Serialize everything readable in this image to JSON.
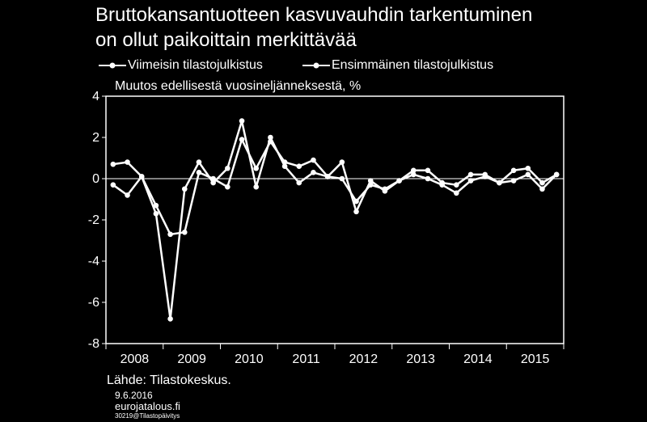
{
  "title_line1": "Bruttokansantuotteen kasvuvauhdin tarkentuminen",
  "title_line2": "on ollut paikoittain merkittävää",
  "source": "Lähde: Tilastokeskus.",
  "footer": {
    "date": "9.6.2016",
    "site": "eurojatalous.fi",
    "code": "30219@Tilastopäivitys"
  },
  "colors": {
    "background": "#000000",
    "line": "#ffffff"
  },
  "chart_data": {
    "type": "line",
    "ylabel": "Muutos edellisestä vuosineljänneksestä, %",
    "ylim": [
      -8,
      4
    ],
    "yticks": [
      4,
      2,
      0,
      -2,
      -4,
      -6,
      -8
    ],
    "year_labels": [
      "2008",
      "2009",
      "2010",
      "2011",
      "2012",
      "2013",
      "2014",
      "2015"
    ],
    "x": [
      "2008Q1",
      "2008Q2",
      "2008Q3",
      "2008Q4",
      "2009Q1",
      "2009Q2",
      "2009Q3",
      "2009Q4",
      "2010Q1",
      "2010Q2",
      "2010Q3",
      "2010Q4",
      "2011Q1",
      "2011Q2",
      "2011Q3",
      "2011Q4",
      "2012Q1",
      "2012Q2",
      "2012Q3",
      "2012Q4",
      "2013Q1",
      "2013Q2",
      "2013Q3",
      "2013Q4",
      "2014Q1",
      "2014Q2",
      "2014Q3",
      "2014Q4",
      "2015Q1",
      "2015Q2",
      "2015Q3",
      "2015Q4"
    ],
    "grid": false,
    "legend_position": "top",
    "series": [
      {
        "name": "Viimeisin tilastojulkistus",
        "values": [
          -0.3,
          -0.8,
          0.1,
          -1.7,
          -6.8,
          -0.5,
          0.8,
          -0.2,
          0.5,
          2.8,
          -0.4,
          2.0,
          0.6,
          -0.2,
          0.3,
          0.1,
          0.8,
          -1.6,
          -0.1,
          -0.6,
          -0.1,
          0.2,
          0.0,
          -0.3,
          -0.7,
          -0.1,
          0.1,
          -0.2,
          -0.1,
          0.2,
          -0.5,
          0.2
        ]
      },
      {
        "name": "Ensimmäinen tilastojulkistus",
        "values": [
          0.7,
          0.8,
          0.1,
          -1.3,
          -2.7,
          -2.6,
          0.3,
          0.0,
          -0.4,
          1.9,
          0.5,
          1.8,
          0.8,
          0.6,
          0.9,
          0.1,
          0.0,
          -1.1,
          -0.3,
          -0.5,
          -0.1,
          0.4,
          0.4,
          -0.2,
          -0.3,
          0.2,
          0.2,
          -0.2,
          0.4,
          0.5,
          -0.2,
          0.2
        ]
      }
    ]
  }
}
